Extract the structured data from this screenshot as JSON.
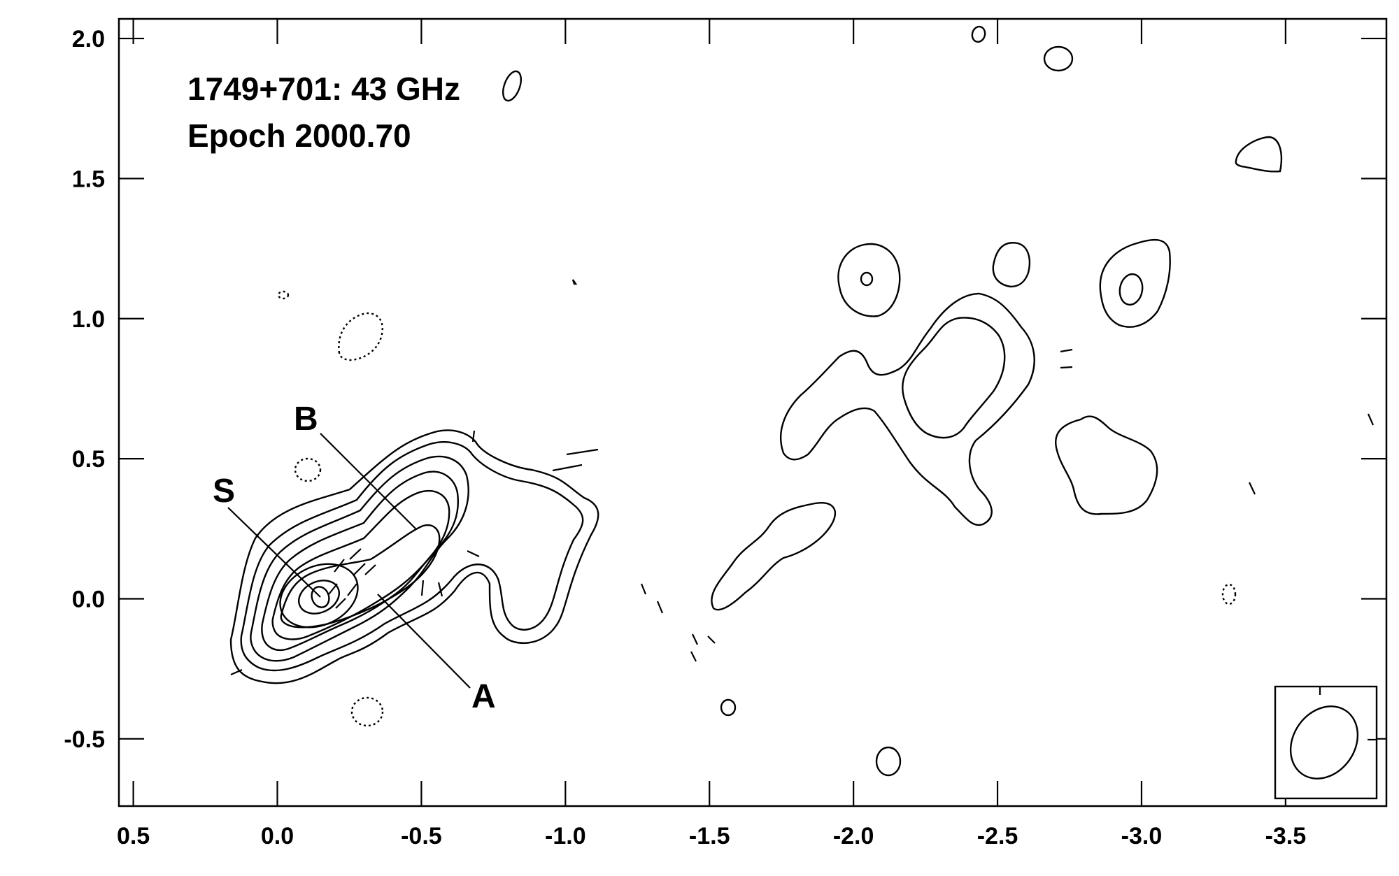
{
  "chart_data": {
    "type": "contour",
    "title": "1749+701: 43 GHz",
    "subtitle": "Epoch 2000.70",
    "xlabel": "",
    "ylabel": "",
    "x_range": [
      0.55,
      -3.85
    ],
    "y_range": [
      -0.74,
      2.07
    ],
    "x_ticks": [
      {
        "value": 0.5,
        "label": "0.5"
      },
      {
        "value": 0.0,
        "label": "0.0"
      },
      {
        "value": -0.5,
        "label": "-0.5"
      },
      {
        "value": -1.0,
        "label": "-1.0"
      },
      {
        "value": -1.5,
        "label": "-1.5"
      },
      {
        "value": -2.0,
        "label": "-2.0"
      },
      {
        "value": -2.5,
        "label": "-2.5"
      },
      {
        "value": -3.0,
        "label": "-3.0"
      },
      {
        "value": -3.5,
        "label": "-3.5"
      }
    ],
    "y_ticks": [
      {
        "value": 2.0,
        "label": "2.0"
      },
      {
        "value": 1.5,
        "label": "1.5"
      },
      {
        "value": 1.0,
        "label": "1.0"
      },
      {
        "value": 0.5,
        "label": "0.5"
      },
      {
        "value": 0.0,
        "label": "0.0"
      },
      {
        "value": -0.5,
        "label": "-0.5"
      }
    ],
    "components": [
      {
        "label": "S",
        "position": [
          0.0,
          0.0
        ]
      },
      {
        "label": "A",
        "position": [
          -0.22,
          0.02
        ]
      },
      {
        "label": "B",
        "position": [
          -0.34,
          0.25
        ]
      }
    ],
    "beam": {
      "major": 0.22,
      "minor": 0.17,
      "pa_deg": 35,
      "position": "bottom-right"
    },
    "contour_style": "solid positive, dotted negative",
    "grid": false
  }
}
